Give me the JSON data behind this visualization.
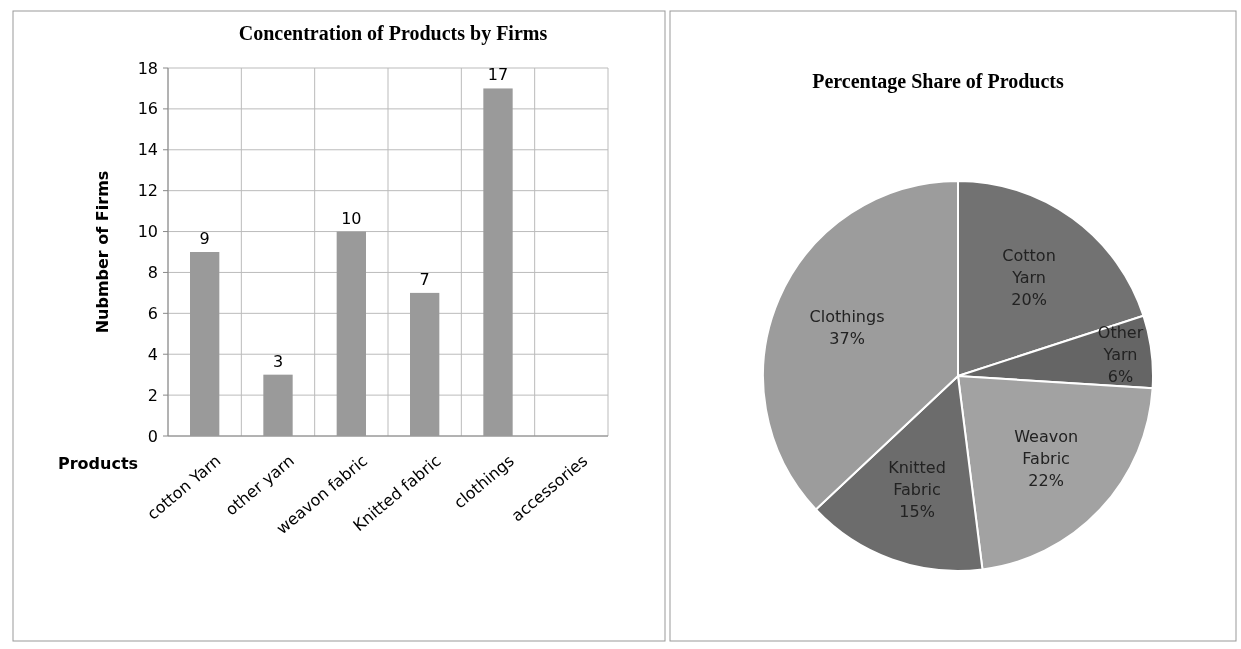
{
  "chart_data": [
    {
      "type": "bar",
      "title": "Concentration of  Products by Firms",
      "xlabel": "Products",
      "ylabel": "Nubmber of Firms",
      "categories": [
        "cotton Yarn",
        "other yarn",
        "weavon fabric",
        "Knitted fabric",
        "clothings",
        "accessories"
      ],
      "values": [
        9,
        3,
        10,
        7,
        17,
        null
      ],
      "color": "#9a9a9a",
      "ylim": [
        0,
        18
      ],
      "yticks": [
        0,
        2,
        4,
        6,
        8,
        10,
        12,
        14,
        16,
        18
      ],
      "grid": true,
      "data_labels": true
    },
    {
      "type": "pie",
      "title": "Percentage Share of Products",
      "categories": [
        "Cotton Yarn",
        "Other Yarn",
        "Weavon Fabric",
        "Knitted Fabric",
        "Clothings"
      ],
      "values": [
        20,
        6,
        22,
        15,
        37
      ],
      "colors": [
        "#727272",
        "#656565",
        "#a2a2a2",
        "#6c6c6c",
        "#9c9c9c"
      ],
      "value_labels": [
        "20%",
        "6%",
        "22%",
        "15%",
        "37%"
      ]
    }
  ]
}
